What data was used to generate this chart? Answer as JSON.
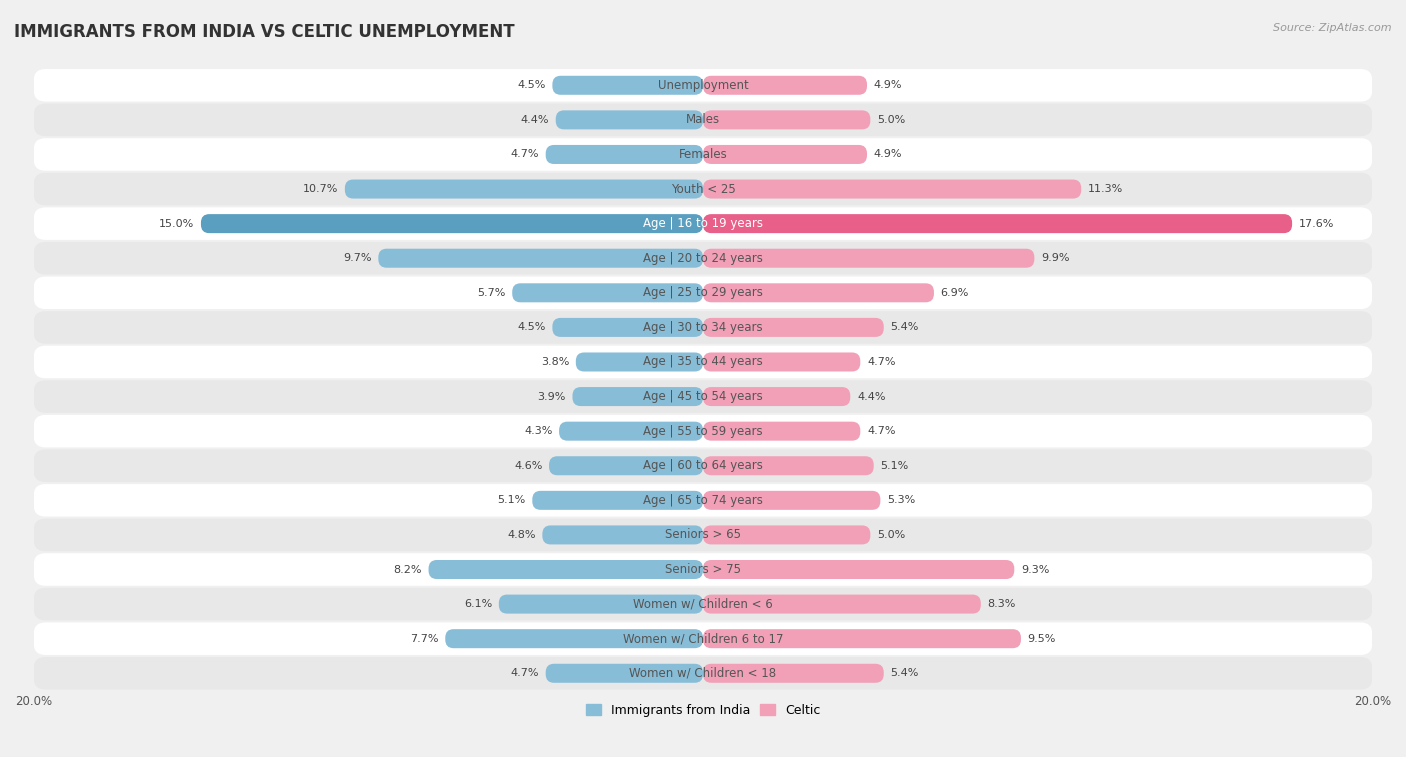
{
  "title": "IMMIGRANTS FROM INDIA VS CELTIC UNEMPLOYMENT",
  "source": "Source: ZipAtlas.com",
  "categories": [
    "Unemployment",
    "Males",
    "Females",
    "Youth < 25",
    "Age | 16 to 19 years",
    "Age | 20 to 24 years",
    "Age | 25 to 29 years",
    "Age | 30 to 34 years",
    "Age | 35 to 44 years",
    "Age | 45 to 54 years",
    "Age | 55 to 59 years",
    "Age | 60 to 64 years",
    "Age | 65 to 74 years",
    "Seniors > 65",
    "Seniors > 75",
    "Women w/ Children < 6",
    "Women w/ Children 6 to 17",
    "Women w/ Children < 18"
  ],
  "india_values": [
    4.5,
    4.4,
    4.7,
    10.7,
    15.0,
    9.7,
    5.7,
    4.5,
    3.8,
    3.9,
    4.3,
    4.6,
    5.1,
    4.8,
    8.2,
    6.1,
    7.7,
    4.7
  ],
  "celtic_values": [
    4.9,
    5.0,
    4.9,
    11.3,
    17.6,
    9.9,
    6.9,
    5.4,
    4.7,
    4.4,
    4.7,
    5.1,
    5.3,
    5.0,
    9.3,
    8.3,
    9.5,
    5.4
  ],
  "india_color": "#88bdd8",
  "celtic_color": "#f2a0b8",
  "india_color_strong": "#5a9fc0",
  "celtic_color_strong": "#e8608a",
  "background_color": "#f0f0f0",
  "row_bg_color": "#e8e8e8",
  "row_white_color": "#ffffff",
  "axis_max": 20.0,
  "legend_label_india": "Immigrants from India",
  "legend_label_celtic": "Celtic",
  "title_fontsize": 12,
  "label_fontsize": 8.5,
  "value_fontsize": 8.0,
  "tick_fontsize": 8.5
}
